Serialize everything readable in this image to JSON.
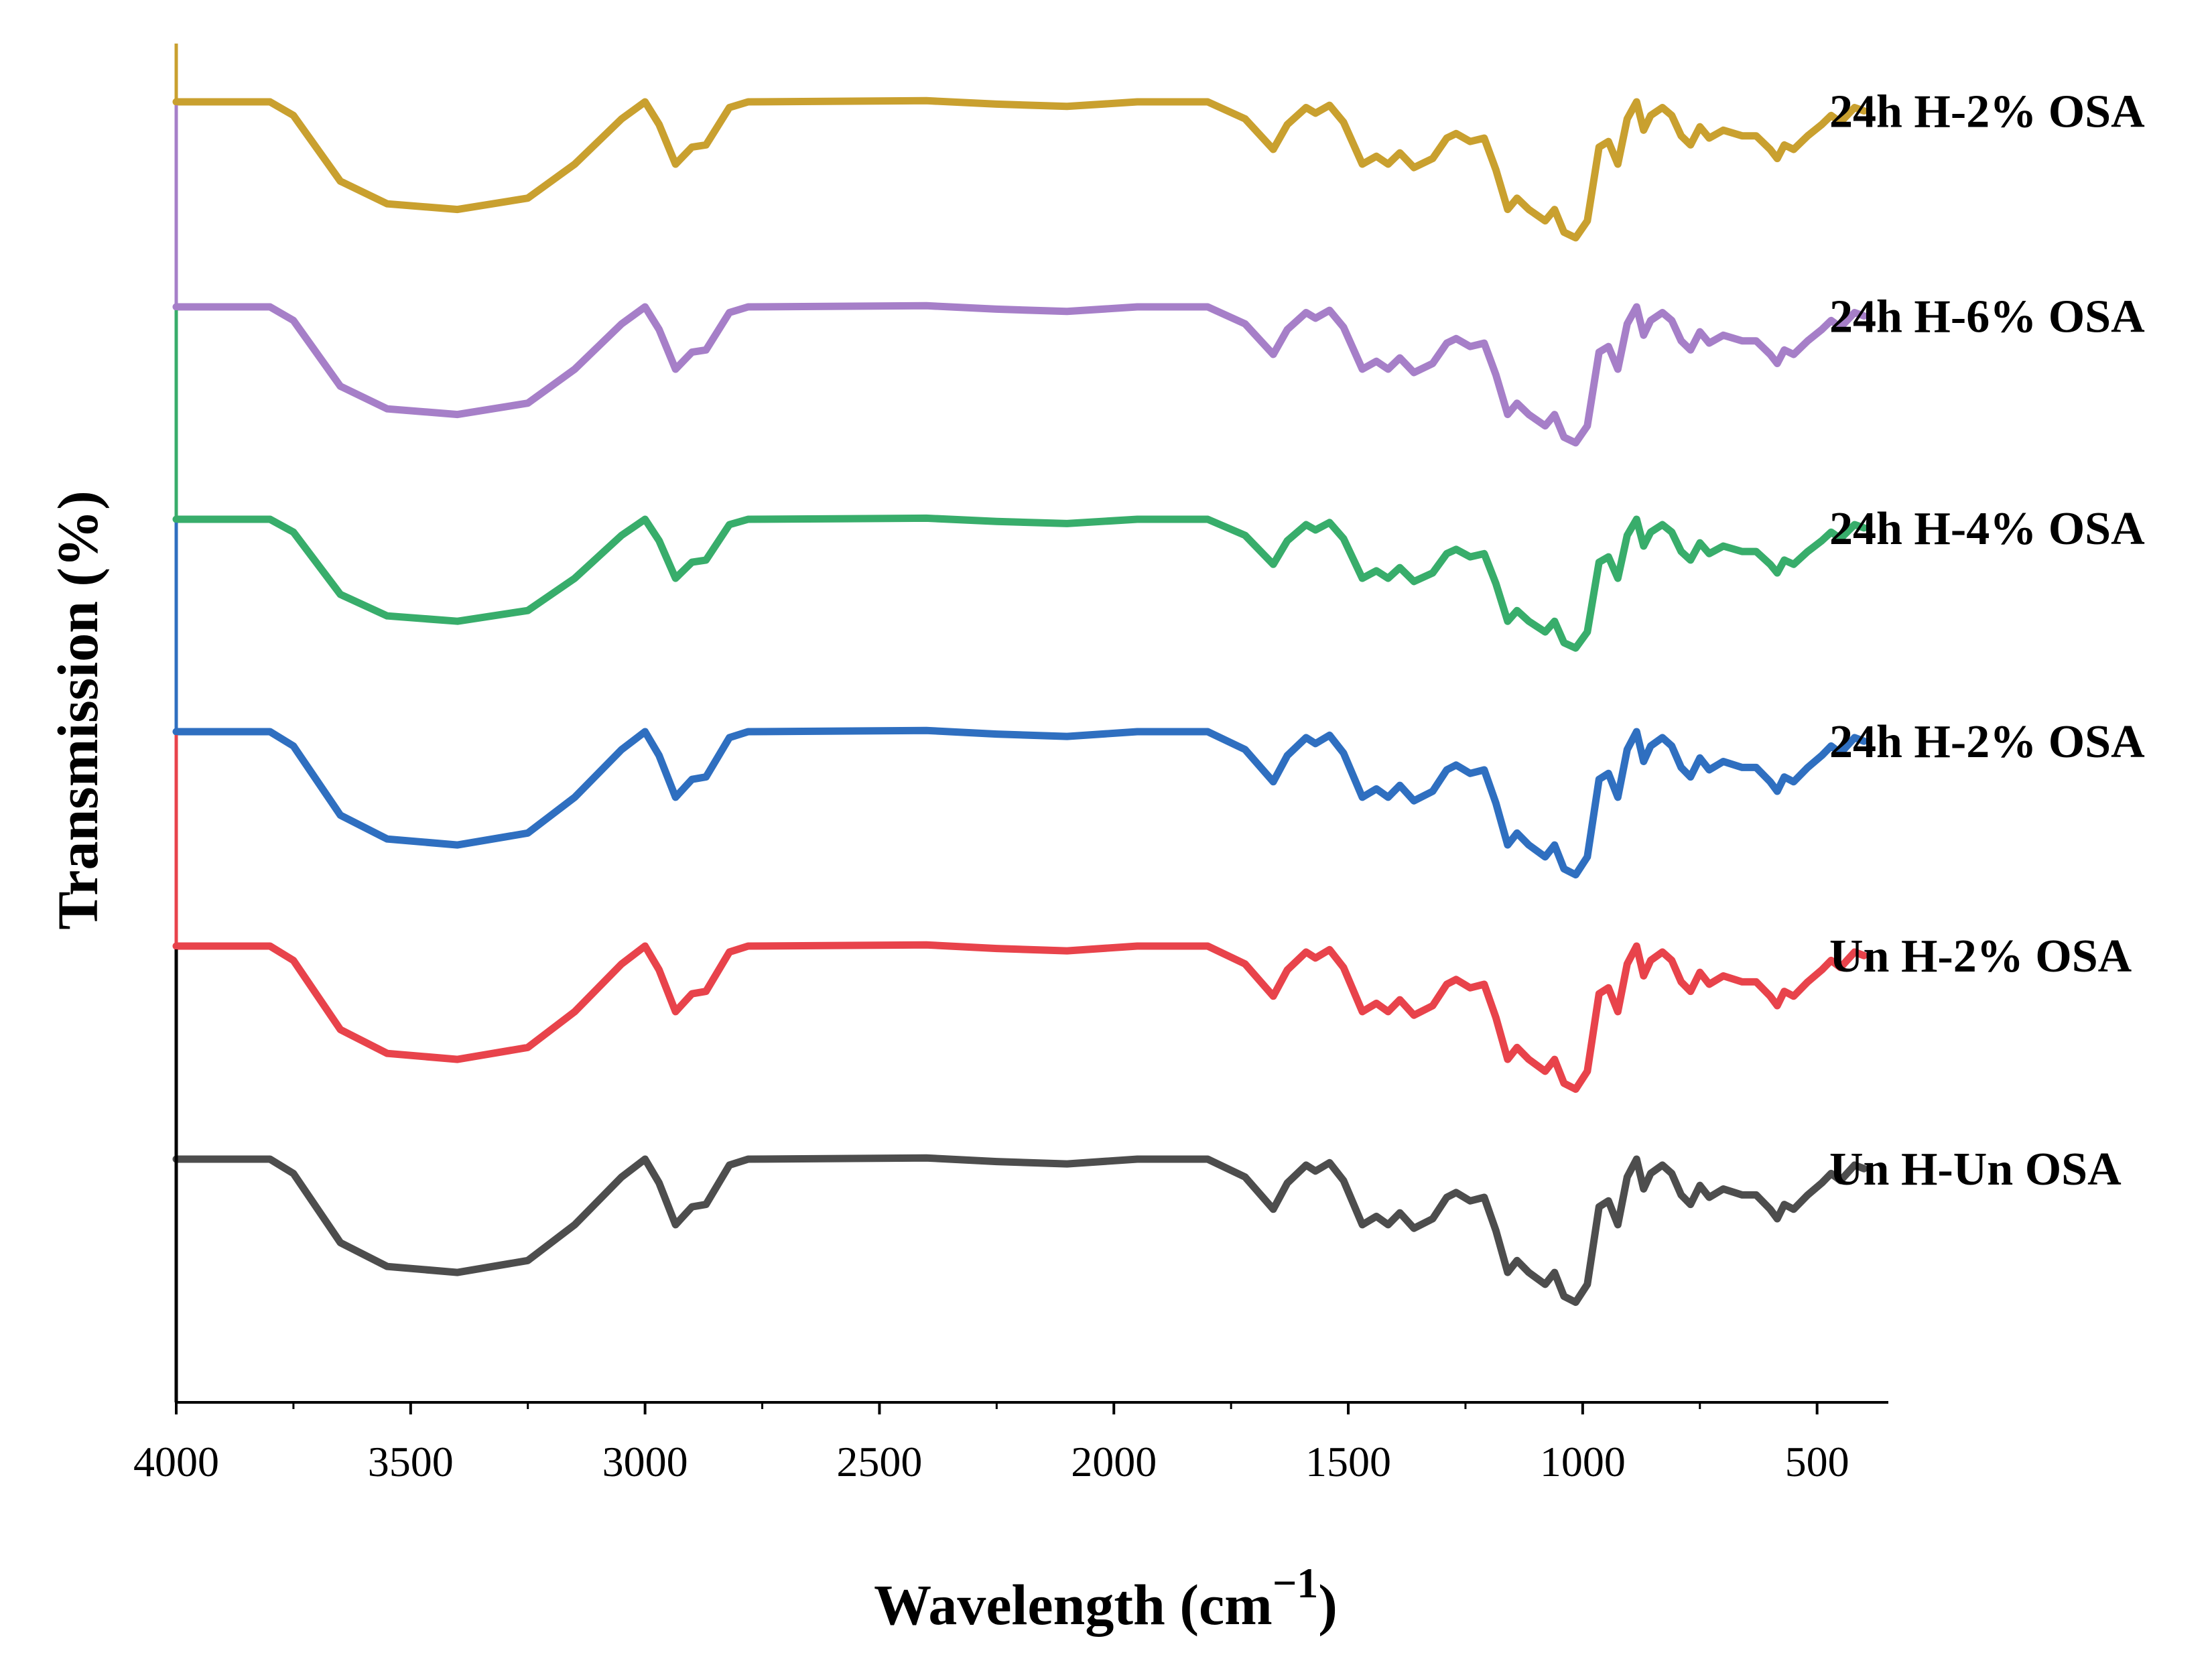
{
  "chart_data": {
    "type": "line",
    "title": "",
    "xlabel": "Wavelength (cm",
    "xlabel_sup": "−1",
    "xlabel_close": ")",
    "ylabel": "Transmission (%)",
    "xlim": [
      4000,
      400
    ],
    "x_major_ticks": [
      4000,
      3500,
      3000,
      2500,
      2000,
      1500,
      1000,
      500
    ],
    "x_tick_labels": [
      "4000",
      "3500",
      "3000",
      "2500",
      "2000",
      "1500",
      "1000",
      "500"
    ],
    "y_ticks_shown": false,
    "grid": false,
    "legend": "inline labels at right end of each curve",
    "curve_profile": [
      [
        4000,
        0.0
      ],
      [
        3800,
        0.0
      ],
      [
        3750,
        -0.12
      ],
      [
        3650,
        -0.7
      ],
      [
        3550,
        -0.9
      ],
      [
        3400,
        -0.95
      ],
      [
        3250,
        -0.85
      ],
      [
        3150,
        -0.55
      ],
      [
        3050,
        -0.15
      ],
      [
        3000,
        0.0
      ],
      [
        2970,
        -0.2
      ],
      [
        2935,
        -0.55
      ],
      [
        2900,
        -0.4
      ],
      [
        2870,
        -0.38
      ],
      [
        2820,
        -0.05
      ],
      [
        2780,
        0.0
      ],
      [
        2400,
        0.01
      ],
      [
        2250,
        -0.02
      ],
      [
        2100,
        -0.04
      ],
      [
        1950,
        0.0
      ],
      [
        1800,
        0.0
      ],
      [
        1720,
        -0.15
      ],
      [
        1660,
        -0.42
      ],
      [
        1630,
        -0.2
      ],
      [
        1590,
        -0.05
      ],
      [
        1570,
        -0.1
      ],
      [
        1540,
        -0.03
      ],
      [
        1510,
        -0.18
      ],
      [
        1470,
        -0.55
      ],
      [
        1440,
        -0.48
      ],
      [
        1415,
        -0.55
      ],
      [
        1390,
        -0.45
      ],
      [
        1360,
        -0.58
      ],
      [
        1320,
        -0.5
      ],
      [
        1290,
        -0.32
      ],
      [
        1270,
        -0.28
      ],
      [
        1240,
        -0.35
      ],
      [
        1210,
        -0.32
      ],
      [
        1185,
        -0.6
      ],
      [
        1160,
        -0.95
      ],
      [
        1140,
        -0.85
      ],
      [
        1115,
        -0.95
      ],
      [
        1080,
        -1.05
      ],
      [
        1060,
        -0.95
      ],
      [
        1040,
        -1.15
      ],
      [
        1015,
        -1.2
      ],
      [
        990,
        -1.05
      ],
      [
        965,
        -0.4
      ],
      [
        945,
        -0.35
      ],
      [
        925,
        -0.55
      ],
      [
        905,
        -0.15
      ],
      [
        885,
        0.0
      ],
      [
        870,
        -0.25
      ],
      [
        855,
        -0.12
      ],
      [
        830,
        -0.05
      ],
      [
        810,
        -0.12
      ],
      [
        790,
        -0.3
      ],
      [
        770,
        -0.38
      ],
      [
        750,
        -0.22
      ],
      [
        730,
        -0.32
      ],
      [
        700,
        -0.25
      ],
      [
        660,
        -0.3
      ],
      [
        630,
        -0.3
      ],
      [
        600,
        -0.42
      ],
      [
        585,
        -0.5
      ],
      [
        570,
        -0.38
      ],
      [
        550,
        -0.42
      ],
      [
        520,
        -0.3
      ],
      [
        490,
        -0.2
      ],
      [
        470,
        -0.12
      ],
      [
        450,
        -0.18
      ],
      [
        420,
        -0.05
      ],
      [
        400,
        -0.08
      ]
    ],
    "series": [
      {
        "name": "Un H-Un OSA",
        "color": "#4d4d4d",
        "offset": 0,
        "amplitude": 1.0
      },
      {
        "name": "Un H-2% OSA",
        "color": "#e8434b",
        "offset": 1,
        "amplitude": 1.0
      },
      {
        "name": "24h H-2% OSA",
        "color": "#2f6fc0",
        "offset": 2,
        "amplitude": 1.0
      },
      {
        "name": "24h H-4% OSA",
        "color": "#38ad6b",
        "offset": 3,
        "amplitude": 0.9
      },
      {
        "name": "24h H-6% OSA",
        "color": "#a67fc8",
        "offset": 4,
        "amplitude": 0.95
      },
      {
        "name": "24h H-2% OSA",
        "color": "#c9a02f",
        "offset": 5,
        "amplitude": 0.95
      }
    ]
  }
}
